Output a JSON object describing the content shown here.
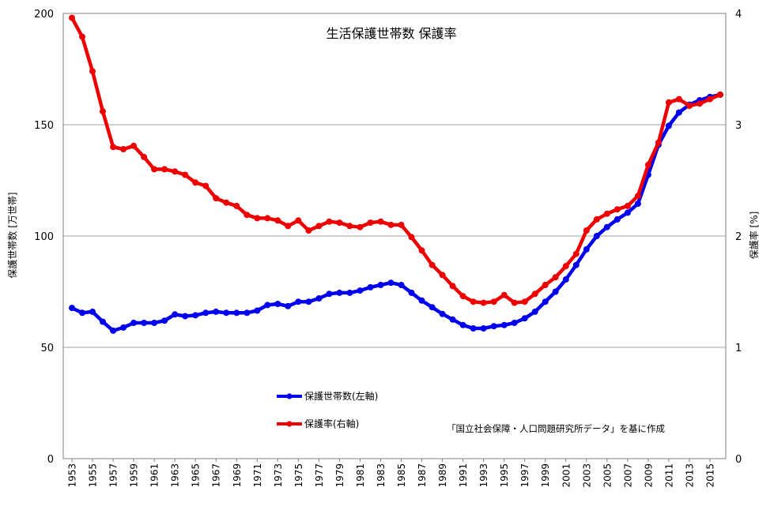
{
  "chart_data": {
    "type": "line",
    "title": "生活保護世帯数 保護率",
    "ylabel": "保護世帯数 [万世帯]",
    "y2label": "保護率 [%]",
    "annotation": "「国立社会保障・人口問題研究所データ」を基に作成",
    "ylim": [
      0,
      200
    ],
    "y2lim": [
      0,
      4
    ],
    "yticks": [
      0,
      50,
      100,
      150,
      200
    ],
    "y2ticks": [
      0,
      1,
      2,
      3,
      4
    ],
    "grid": "horizontal",
    "legend_position": "lower-left",
    "x": [
      1953,
      1954,
      1955,
      1956,
      1957,
      1958,
      1959,
      1960,
      1961,
      1962,
      1963,
      1964,
      1965,
      1966,
      1967,
      1968,
      1969,
      1970,
      1971,
      1972,
      1973,
      1974,
      1975,
      1976,
      1977,
      1978,
      1979,
      1980,
      1981,
      1982,
      1983,
      1984,
      1985,
      1986,
      1987,
      1988,
      1989,
      1990,
      1991,
      1992,
      1993,
      1994,
      1995,
      1996,
      1997,
      1998,
      1999,
      2000,
      2001,
      2002,
      2003,
      2004,
      2005,
      2006,
      2007,
      2008,
      2009,
      2010,
      2011,
      2012,
      2013,
      2014,
      2015,
      2016
    ],
    "xticks": [
      1953,
      1955,
      1957,
      1959,
      1961,
      1963,
      1965,
      1967,
      1969,
      1971,
      1973,
      1975,
      1977,
      1979,
      1981,
      1983,
      1985,
      1987,
      1989,
      1991,
      1993,
      1995,
      1997,
      1999,
      2001,
      2003,
      2005,
      2007,
      2009,
      2011,
      2013,
      2015
    ],
    "series": [
      {
        "name": "保護世帯数(左軸)",
        "axis": "left",
        "color": "#0000ee",
        "values": [
          67.7,
          65.5,
          66.0,
          61.5,
          57.5,
          58.9,
          61.0,
          61.0,
          61.0,
          62.0,
          64.8,
          64.0,
          64.4,
          65.5,
          66.0,
          65.5,
          65.5,
          65.5,
          66.5,
          69.0,
          69.5,
          68.5,
          70.5,
          70.5,
          72.0,
          74.0,
          74.5,
          74.5,
          75.5,
          77.0,
          78.0,
          79.0,
          78.0,
          74.5,
          71.0,
          68.0,
          65.0,
          62.5,
          60.0,
          58.5,
          58.5,
          59.5,
          60.0,
          61.0,
          63.0,
          66.0,
          70.5,
          75.0,
          80.5,
          87.0,
          94.0,
          100.0,
          104.0,
          107.5,
          110.5,
          114.5,
          127.5,
          141.0,
          149.5,
          155.5,
          159.0,
          161.0,
          162.5,
          163.5
        ]
      },
      {
        "name": "保護率(右軸)",
        "axis": "right",
        "color": "#ee0000",
        "values": [
          3.96,
          3.79,
          3.48,
          3.12,
          2.8,
          2.78,
          2.81,
          2.71,
          2.6,
          2.6,
          2.58,
          2.55,
          2.48,
          2.45,
          2.34,
          2.3,
          2.27,
          2.19,
          2.16,
          2.16,
          2.14,
          2.09,
          2.14,
          2.05,
          2.09,
          2.13,
          2.12,
          2.09,
          2.08,
          2.12,
          2.13,
          2.1,
          2.1,
          1.99,
          1.87,
          1.74,
          1.65,
          1.55,
          1.46,
          1.41,
          1.4,
          1.41,
          1.47,
          1.4,
          1.41,
          1.48,
          1.56,
          1.63,
          1.73,
          1.84,
          2.05,
          2.15,
          2.2,
          2.24,
          2.27,
          2.36,
          2.64,
          2.84,
          3.2,
          3.23,
          3.17,
          3.19,
          3.23,
          3.27
        ]
      }
    ]
  }
}
